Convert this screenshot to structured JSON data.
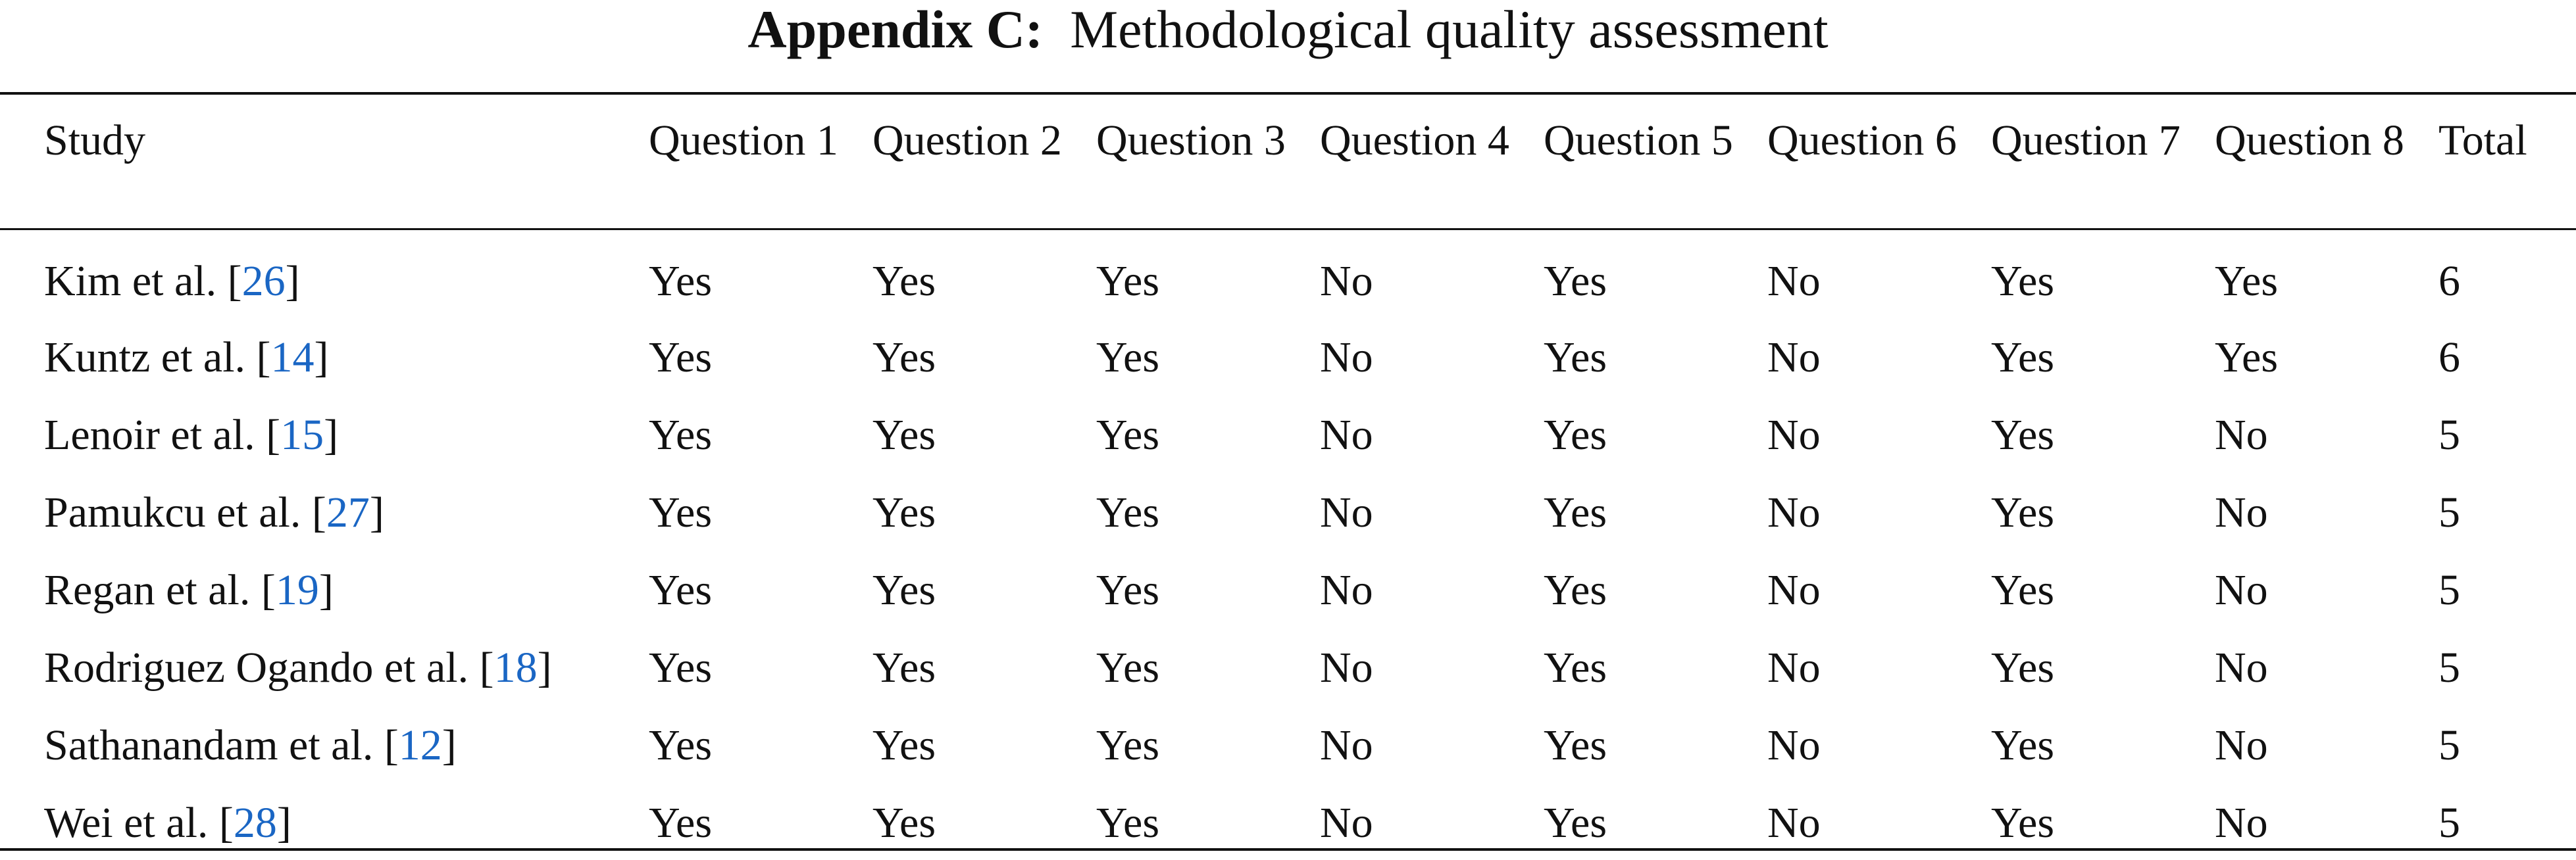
{
  "header": {
    "title_label": "Appendix C:",
    "title": "Methodological quality assessment"
  },
  "table": {
    "columns": [
      "Study",
      "Question 1",
      "Question 2",
      "Question 3",
      "Question 4",
      "Question 5",
      "Question 6",
      "Question 7",
      "Question 8",
      "Total"
    ],
    "rows": [
      {
        "study": [
          "Kim et al. [",
          "26",
          "]"
        ],
        "answers": [
          "Yes",
          "Yes",
          "Yes",
          "No",
          "Yes",
          "No",
          "Yes",
          "Yes"
        ],
        "total": 6
      },
      {
        "study": [
          "Kuntz et al. [",
          "14",
          "]"
        ],
        "answers": [
          "Yes",
          "Yes",
          "Yes",
          "No",
          "Yes",
          "No",
          "Yes",
          "Yes"
        ],
        "total": 6
      },
      {
        "study": [
          "Lenoir et al. [",
          "15",
          "]"
        ],
        "answers": [
          "Yes",
          "Yes",
          "Yes",
          "No",
          "Yes",
          "No",
          "Yes",
          "No"
        ],
        "total": 5
      },
      {
        "study": [
          "Pamukcu et al. [",
          "27",
          "]"
        ],
        "answers": [
          "Yes",
          "Yes",
          "Yes",
          "No",
          "Yes",
          "No",
          "Yes",
          "No"
        ],
        "total": 5
      },
      {
        "study": [
          "Regan et al. [",
          "19",
          "]"
        ],
        "answers": [
          "Yes",
          "Yes",
          "Yes",
          "No",
          "Yes",
          "No",
          "Yes",
          "No"
        ],
        "total": 5
      },
      {
        "study": [
          "Rodriguez Ogando et al. [",
          "18",
          "]"
        ],
        "answers": [
          "Yes",
          "Yes",
          "Yes",
          "No",
          "Yes",
          "No",
          "Yes",
          "No"
        ],
        "total": 5
      },
      {
        "study": [
          "Sathanandam et al. [",
          "12",
          "]"
        ],
        "answers": [
          "Yes",
          "Yes",
          "Yes",
          "No",
          "Yes",
          "No",
          "Yes",
          "No"
        ],
        "total": 5
      },
      {
        "study": [
          "Wei et al. [",
          "28",
          "]"
        ],
        "answers": [
          "Yes",
          "Yes",
          "Yes",
          "No",
          "Yes",
          "No",
          "Yes",
          "No"
        ],
        "total": 5
      }
    ]
  }
}
